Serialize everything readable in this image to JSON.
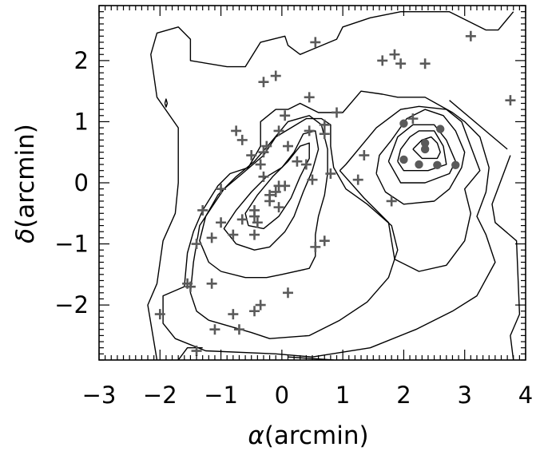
{
  "chart_data": {
    "type": "scatter",
    "xlabel_symbol": "α",
    "xlabel_unit": "(arcmin)",
    "ylabel_symbol": "δ",
    "ylabel_unit": "(arcmin)",
    "xlim": [
      -3,
      4
    ],
    "ylim": [
      -2.9,
      2.9
    ],
    "xticks": [
      -3,
      -2,
      -1,
      0,
      1,
      2,
      3,
      4
    ],
    "xtick_labels": [
      "−3",
      "−2",
      "−1",
      "0",
      "1",
      "2",
      "3",
      "4"
    ],
    "yticks": [
      -2,
      -1,
      0,
      1,
      2
    ],
    "ytick_labels": [
      "−2",
      "−1",
      "0",
      "1",
      "2"
    ],
    "grid": false,
    "series": [
      {
        "marker": "plus",
        "color": "#5a5a5a",
        "points": [
          [
            0.55,
            2.3
          ],
          [
            3.1,
            2.4
          ],
          [
            1.65,
            2.0
          ],
          [
            1.85,
            2.1
          ],
          [
            1.95,
            1.95
          ],
          [
            2.35,
            1.95
          ],
          [
            -0.3,
            1.65
          ],
          [
            -0.1,
            1.75
          ],
          [
            3.75,
            1.35
          ],
          [
            0.45,
            1.4
          ],
          [
            0.9,
            1.15
          ],
          [
            0.05,
            1.1
          ],
          [
            2.15,
            1.05
          ],
          [
            0.7,
            0.95
          ],
          [
            -0.75,
            0.85
          ],
          [
            -0.05,
            0.85
          ],
          [
            0.45,
            0.85
          ],
          [
            -0.65,
            0.7
          ],
          [
            0.7,
            0.8
          ],
          [
            -0.5,
            0.45
          ],
          [
            -0.3,
            0.5
          ],
          [
            -0.25,
            0.6
          ],
          [
            0.1,
            0.6
          ],
          [
            1.35,
            0.45
          ],
          [
            -0.35,
            0.3
          ],
          [
            0.25,
            0.35
          ],
          [
            0.4,
            0.3
          ],
          [
            -0.3,
            0.1
          ],
          [
            0.5,
            0.05
          ],
          [
            1.25,
            0.05
          ],
          [
            0.8,
            0.15
          ],
          [
            -1.0,
            -0.1
          ],
          [
            -0.05,
            -0.05
          ],
          [
            0.05,
            -0.05
          ],
          [
            -0.1,
            -0.15
          ],
          [
            -0.2,
            -0.2
          ],
          [
            1.8,
            -0.3
          ],
          [
            -1.3,
            -0.45
          ],
          [
            -0.45,
            -0.45
          ],
          [
            -0.2,
            -0.3
          ],
          [
            -0.05,
            -0.4
          ],
          [
            -0.45,
            -0.55
          ],
          [
            -1.0,
            -0.65
          ],
          [
            -0.65,
            -0.6
          ],
          [
            -0.4,
            -0.65
          ],
          [
            -0.8,
            -0.85
          ],
          [
            -0.45,
            -0.85
          ],
          [
            -1.15,
            -0.9
          ],
          [
            -1.4,
            -1.0
          ],
          [
            0.55,
            -1.05
          ],
          [
            0.7,
            -0.95
          ],
          [
            -1.55,
            -1.65
          ],
          [
            -1.5,
            -1.7
          ],
          [
            -1.15,
            -1.65
          ],
          [
            0.1,
            -1.8
          ],
          [
            -0.35,
            -2.0
          ],
          [
            -0.45,
            -2.1
          ],
          [
            -2.0,
            -2.15
          ],
          [
            -0.8,
            -2.15
          ],
          [
            -1.1,
            -2.4
          ],
          [
            -0.7,
            -2.4
          ],
          [
            -1.4,
            -2.75
          ]
        ]
      },
      {
        "marker": "circle",
        "color": "#5a5a5a",
        "points": [
          [
            2.0,
            0.97
          ],
          [
            2.6,
            0.88
          ],
          [
            2.35,
            0.65
          ],
          [
            2.35,
            0.55
          ],
          [
            2.0,
            0.38
          ],
          [
            2.25,
            0.3
          ],
          [
            2.55,
            0.29
          ],
          [
            2.85,
            0.29
          ]
        ]
      }
    ],
    "contours": [
      [
        [
          -2.05,
          -2.9
        ],
        [
          -2.2,
          -2.0
        ],
        [
          -2.05,
          -1.65
        ],
        [
          -1.95,
          -0.95
        ],
        [
          -1.75,
          -0.5
        ],
        [
          -1.7,
          0.0
        ],
        [
          -1.7,
          0.9
        ],
        [
          -2.05,
          1.4
        ],
        [
          -2.15,
          2.1
        ],
        [
          -2.05,
          2.45
        ],
        [
          -1.7,
          2.55
        ],
        [
          -1.5,
          2.35
        ],
        [
          -1.5,
          2.0
        ],
        [
          -0.9,
          1.9
        ],
        [
          -0.6,
          1.9
        ],
        [
          -0.35,
          2.3
        ],
        [
          0.05,
          2.4
        ],
        [
          0.1,
          2.25
        ],
        [
          0.3,
          2.1
        ],
        [
          0.9,
          2.35
        ],
        [
          1.0,
          2.55
        ],
        [
          1.45,
          2.7
        ],
        [
          1.95,
          2.8
        ],
        [
          2.75,
          2.8
        ],
        [
          3.35,
          2.5
        ],
        [
          3.55,
          2.5
        ],
        [
          3.8,
          2.8
        ]
      ],
      [
        [
          3.75,
          0.45
        ],
        [
          3.45,
          -0.35
        ],
        [
          3.5,
          -0.65
        ],
        [
          3.85,
          -0.95
        ],
        [
          3.9,
          -2.15
        ],
        [
          3.75,
          -2.5
        ],
        [
          3.8,
          -2.9
        ]
      ],
      [
        [
          -1.7,
          -2.9
        ],
        [
          -1.55,
          -2.7
        ],
        [
          -1.3,
          -2.7
        ]
      ],
      [
        [
          0.1,
          -2.85
        ],
        [
          0.85,
          -2.9
        ]
      ],
      [
        [
          -0.1,
          -2.8
        ],
        [
          0.5,
          -2.85
        ],
        [
          1.45,
          -2.7
        ],
        [
          2.2,
          -2.4
        ],
        [
          2.8,
          -2.1
        ],
        [
          3.2,
          -1.85
        ],
        [
          3.5,
          -1.3
        ],
        [
          3.35,
          -0.85
        ],
        [
          3.2,
          -0.55
        ],
        [
          3.35,
          -0.15
        ],
        [
          3.4,
          0.25
        ],
        [
          3.25,
          0.75
        ],
        [
          3.0,
          1.0
        ],
        [
          2.8,
          1.15
        ],
        [
          2.35,
          1.4
        ],
        [
          1.9,
          1.4
        ],
        [
          1.65,
          1.45
        ],
        [
          1.3,
          1.5
        ],
        [
          1.0,
          1.15
        ],
        [
          0.6,
          1.15
        ],
        [
          0.3,
          1.3
        ],
        [
          0.1,
          1.2
        ],
        [
          -0.1,
          1.2
        ],
        [
          -0.35,
          1.0
        ],
        [
          -0.35,
          0.6
        ],
        [
          -0.55,
          0.25
        ],
        [
          -0.85,
          0.15
        ],
        [
          -1.05,
          -0.05
        ],
        [
          -1.3,
          -0.45
        ],
        [
          -1.45,
          -0.8
        ],
        [
          -1.55,
          -1.15
        ],
        [
          -1.6,
          -1.7
        ],
        [
          -1.95,
          -1.85
        ],
        [
          -1.95,
          -2.3
        ],
        [
          -1.75,
          -2.55
        ],
        [
          -1.25,
          -2.75
        ],
        [
          -0.1,
          -2.8
        ]
      ],
      [
        [
          0.95,
          0.2
        ],
        [
          1.35,
          -0.25
        ],
        [
          1.55,
          -0.45
        ],
        [
          1.75,
          -0.65
        ],
        [
          1.85,
          -1.25
        ],
        [
          2.25,
          -1.45
        ],
        [
          2.7,
          -1.35
        ],
        [
          3.0,
          -0.95
        ],
        [
          3.1,
          -0.5
        ],
        [
          3.0,
          -0.1
        ],
        [
          3.25,
          0.2
        ],
        [
          3.1,
          0.6
        ],
        [
          2.95,
          1.0
        ],
        [
          2.7,
          1.2
        ],
        [
          2.25,
          1.25
        ],
        [
          1.95,
          1.2
        ],
        [
          1.55,
          0.9
        ],
        [
          1.3,
          0.6
        ],
        [
          1.05,
          0.3
        ],
        [
          0.95,
          0.2
        ]
      ],
      [
        [
          1.55,
          0.15
        ],
        [
          1.7,
          -0.15
        ],
        [
          2.0,
          -0.35
        ],
        [
          2.5,
          -0.3
        ],
        [
          2.75,
          -0.1
        ],
        [
          2.95,
          0.25
        ],
        [
          3.0,
          0.5
        ],
        [
          2.85,
          0.85
        ],
        [
          2.65,
          1.1
        ],
        [
          2.35,
          1.2
        ],
        [
          2.05,
          1.05
        ],
        [
          1.8,
          0.7
        ],
        [
          1.6,
          0.45
        ],
        [
          1.55,
          0.15
        ]
      ],
      [
        [
          1.75,
          0.35
        ],
        [
          1.95,
          0.0
        ],
        [
          2.35,
          0.0
        ],
        [
          2.75,
          0.15
        ],
        [
          2.85,
          0.35
        ],
        [
          2.7,
          0.7
        ],
        [
          2.5,
          0.95
        ],
        [
          2.15,
          0.95
        ],
        [
          1.9,
          0.75
        ],
        [
          1.75,
          0.35
        ]
      ],
      [
        [
          1.9,
          0.35
        ],
        [
          2.0,
          0.2
        ],
        [
          2.4,
          0.2
        ],
        [
          2.7,
          0.3
        ],
        [
          2.65,
          0.6
        ],
        [
          2.5,
          0.85
        ],
        [
          2.25,
          0.85
        ],
        [
          2.1,
          0.75
        ],
        [
          1.95,
          0.55
        ],
        [
          1.9,
          0.35
        ]
      ],
      [
        [
          2.15,
          0.55
        ],
        [
          2.3,
          0.4
        ],
        [
          2.55,
          0.4
        ],
        [
          2.6,
          0.5
        ],
        [
          2.55,
          0.65
        ],
        [
          2.45,
          0.75
        ],
        [
          2.3,
          0.7
        ],
        [
          2.15,
          0.55
        ]
      ],
      [
        [
          -1.2,
          -2.25
        ],
        [
          -0.5,
          -2.45
        ],
        [
          -0.2,
          -2.55
        ],
        [
          0.45,
          -2.5
        ],
        [
          0.95,
          -2.25
        ],
        [
          1.4,
          -1.95
        ],
        [
          1.75,
          -1.55
        ],
        [
          1.9,
          -1.1
        ],
        [
          1.8,
          -0.7
        ],
        [
          1.4,
          -0.35
        ],
        [
          1.05,
          -0.1
        ],
        [
          0.85,
          0.25
        ],
        [
          0.8,
          0.6
        ],
        [
          0.8,
          0.95
        ],
        [
          0.65,
          1.05
        ],
        [
          0.4,
          1.05
        ],
        [
          0.15,
          0.9
        ],
        [
          -0.1,
          0.75
        ],
        [
          -0.3,
          0.45
        ],
        [
          -0.65,
          0.15
        ],
        [
          -0.95,
          -0.1
        ],
        [
          -1.15,
          -0.4
        ],
        [
          -1.35,
          -0.7
        ],
        [
          -1.45,
          -1.3
        ],
        [
          -1.5,
          -1.8
        ],
        [
          -1.4,
          -2.1
        ],
        [
          -1.2,
          -2.25
        ]
      ],
      [
        [
          -1.0,
          -1.45
        ],
        [
          -0.6,
          -1.55
        ],
        [
          -0.25,
          -1.55
        ],
        [
          0.0,
          -1.5
        ],
        [
          0.45,
          -1.4
        ],
        [
          0.55,
          -1.2
        ],
        [
          0.55,
          -0.85
        ],
        [
          0.6,
          -0.55
        ],
        [
          0.7,
          -0.2
        ],
        [
          0.75,
          0.15
        ],
        [
          0.75,
          0.55
        ],
        [
          0.65,
          0.95
        ],
        [
          0.45,
          1.1
        ],
        [
          0.1,
          1.0
        ],
        [
          -0.15,
          0.7
        ],
        [
          -0.45,
          0.35
        ],
        [
          -0.75,
          0.1
        ],
        [
          -1.05,
          -0.2
        ],
        [
          -1.25,
          -0.55
        ],
        [
          -1.35,
          -0.95
        ],
        [
          -1.2,
          -1.3
        ],
        [
          -1.0,
          -1.45
        ]
      ],
      [
        [
          -0.75,
          -1.0
        ],
        [
          -0.45,
          -1.1
        ],
        [
          -0.2,
          -1.05
        ],
        [
          0.05,
          -0.8
        ],
        [
          0.2,
          -0.55
        ],
        [
          0.35,
          -0.15
        ],
        [
          0.5,
          0.2
        ],
        [
          0.6,
          0.55
        ],
        [
          0.55,
          0.85
        ],
        [
          0.35,
          0.8
        ],
        [
          0.2,
          0.5
        ],
        [
          0.0,
          0.25
        ],
        [
          -0.25,
          0.1
        ],
        [
          -0.5,
          -0.15
        ],
        [
          -0.75,
          -0.45
        ],
        [
          -0.95,
          -0.75
        ],
        [
          -0.75,
          -1.0
        ]
      ],
      [
        [
          -0.55,
          -0.7
        ],
        [
          -0.3,
          -0.75
        ],
        [
          -0.05,
          -0.55
        ],
        [
          0.15,
          -0.25
        ],
        [
          0.3,
          0.1
        ],
        [
          0.45,
          0.4
        ],
        [
          0.45,
          0.65
        ],
        [
          0.3,
          0.6
        ],
        [
          0.1,
          0.35
        ],
        [
          -0.15,
          0.1
        ],
        [
          -0.4,
          -0.2
        ],
        [
          -0.6,
          -0.5
        ],
        [
          -0.55,
          -0.7
        ]
      ],
      [
        [
          -1.92,
          1.3
        ],
        [
          -1.9,
          1.24
        ],
        [
          -1.88,
          1.3
        ],
        [
          -1.9,
          1.37
        ],
        [
          -1.92,
          1.3
        ]
      ],
      [
        [
          2.75,
          1.35
        ],
        [
          3.7,
          0.55
        ]
      ]
    ]
  }
}
